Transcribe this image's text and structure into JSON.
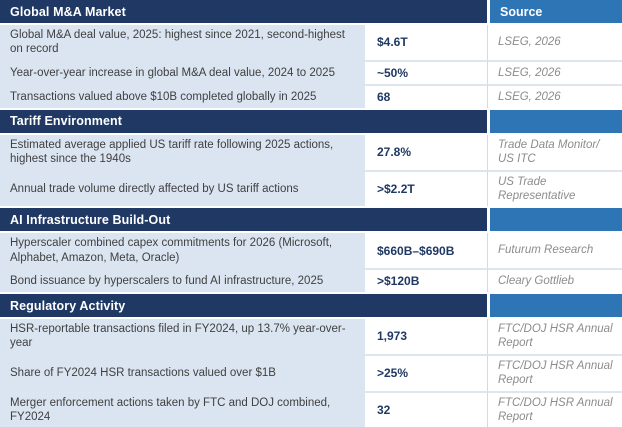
{
  "table": {
    "source_column_header": "Source",
    "colors": {
      "section_header_bg": "#1f3864",
      "source_header_bg": "#2e75b6",
      "metric_cell_bg": "#dbe5f1",
      "value_text": "#1f3864",
      "source_text": "#8c8c8c"
    },
    "sections": [
      {
        "title": "Global M&A Market",
        "rows": [
          {
            "label": "Global M&A deal value, 2025: highest since 2021, second-highest on record",
            "value": "$4.6T",
            "source": "LSEG, 2026"
          },
          {
            "label": "Year-over-year increase in global M&A deal value, 2024 to 2025",
            "value": "~50%",
            "source": "LSEG, 2026"
          },
          {
            "label": "Transactions valued above $10B completed globally in 2025",
            "value": "68",
            "source": "LSEG, 2026"
          }
        ]
      },
      {
        "title": "Tariff Environment",
        "rows": [
          {
            "label": "Estimated average applied US tariff rate following 2025 actions, highest since the 1940s",
            "value": "27.8%",
            "source": "Trade Data Monitor/ US ITC"
          },
          {
            "label": "Annual trade volume directly affected by US tariff actions",
            "value": ">$2.2T",
            "source": "US Trade Representative"
          }
        ]
      },
      {
        "title": "AI Infrastructure Build-Out",
        "rows": [
          {
            "label": "Hyperscaler combined capex commitments for 2026 (Microsoft, Alphabet, Amazon, Meta, Oracle)",
            "value": "$660B–$690B",
            "source": "Futurum Research"
          },
          {
            "label": "Bond issuance by hyperscalers to fund AI infrastructure, 2025",
            "value": ">$120B",
            "source": "Cleary Gottlieb"
          }
        ]
      },
      {
        "title": "Regulatory Activity",
        "rows": [
          {
            "label": "HSR-reportable transactions filed in FY2024, up 13.7% year-over-year",
            "value": "1,973",
            "source": "FTC/DOJ HSR Annual Report"
          },
          {
            "label": "Share of FY2024 HSR transactions valued over $1B",
            "value": ">25%",
            "source": "FTC/DOJ HSR Annual Report"
          },
          {
            "label": "Merger enforcement actions taken by FTC and DOJ combined, FY2024",
            "value": "32",
            "source": "FTC/DOJ HSR Annual Report"
          }
        ]
      }
    ]
  }
}
